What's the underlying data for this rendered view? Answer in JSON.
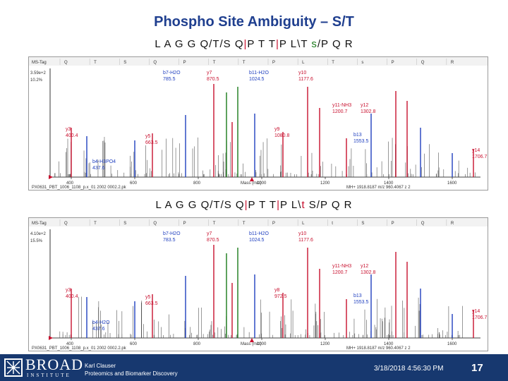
{
  "slide": {
    "title": "Phospho Site Ambiguity – S/T",
    "page_number": "17",
    "date": "3/18/2018 4:56:30 PM",
    "author_line1": "Karl Clauser",
    "author_line2": "Proteomics and Biomarker Discovery"
  },
  "logo": {
    "main": "BROAD",
    "sub": "INSTITUTE"
  },
  "sequence_top": {
    "prefix": "L A G G Q/T/S Q",
    "mid1": "P T T",
    "mid2": "P L\\T ",
    "highlight": "s",
    "suffix": "/P Q R"
  },
  "sequence_bottom": {
    "prefix": "L A G G Q/T/S Q",
    "mid1": "P T T",
    "mid2": "P L\\",
    "highlight": "t",
    "suffix": " S/P Q R"
  },
  "colors": {
    "title": "#1f3f8f",
    "footer": "#17386f",
    "y_ion": "#c8102e",
    "b_ion": "#1f3fbf",
    "green": "#1a7a1a"
  },
  "spectra": [
    {
      "header_left": "MS-Tag",
      "residues": [
        "Q",
        "T",
        "S",
        "Q",
        "P",
        "T",
        "T",
        "P",
        "L",
        "T",
        "s",
        "P",
        "Q",
        "R"
      ],
      "intensity_top": "3.59e+2",
      "intensity_scale": "10.2%",
      "x_axis_label": "Mass (m/z)",
      "x_ticks": [
        "400",
        "600",
        "800",
        "1000",
        "1200",
        "1400",
        "1600"
      ],
      "footer_left": "PX0631_PBT_1006_1108_p.x_01 2002 0002.2.pk",
      "footer_right": "MH+ 1918.8187 m/z 960.4067 z 2",
      "annotations": [
        {
          "text": "b7-H2O",
          "sub": "785.5",
          "color": "#1f3fbf"
        },
        {
          "text": "y7",
          "sub": "870.5",
          "color": "#c8102e"
        },
        {
          "text": "b11-H2O",
          "sub": "1024.5",
          "color": "#1f3fbf"
        },
        {
          "text": "y10",
          "sub": "1177.6",
          "color": "#c8102e"
        },
        {
          "text": "y11-NH3",
          "sub": "1200.7",
          "color": "#c8102e"
        },
        {
          "text": "y12",
          "sub": "1302.8",
          "color": "#c8102e"
        },
        {
          "text": "y5",
          "sub": "663.5",
          "color": "#c8102e"
        },
        {
          "text": "y3",
          "sub": "400.4",
          "color": "#c8102e"
        },
        {
          "text": "b4-H3PO4",
          "sub": "437.6",
          "color": "#1f3fbf"
        },
        {
          "text": "y9",
          "sub": "1080.8",
          "color": "#c8102e"
        },
        {
          "text": "b13",
          "sub": "1553.5",
          "color": "#1f3fbf"
        },
        {
          "text": "y14",
          "sub": "1706.7",
          "color": "#c8102e"
        }
      ]
    },
    {
      "header_left": "MS-Tag",
      "residues": [
        "Q",
        "T",
        "S",
        "Q",
        "P",
        "T",
        "T",
        "P",
        "L",
        "t",
        "S",
        "P",
        "Q",
        "R"
      ],
      "intensity_top": "4.10e+2",
      "intensity_scale": "15.5%",
      "x_axis_label": "Mass (m/z)",
      "x_ticks": [
        "400",
        "600",
        "800",
        "1000",
        "1200",
        "1400",
        "1600"
      ],
      "footer_left": "PX0631_PBT_1006_1108_p.x_01 2002 0002.2.pk",
      "footer_right": "MH+ 1918.8187 m/z 960.4067 z 2",
      "annotations": [
        {
          "text": "b7-H2O",
          "sub": "783.5",
          "color": "#1f3fbf"
        },
        {
          "text": "y7",
          "sub": "870.5",
          "color": "#c8102e"
        },
        {
          "text": "b11-H2O",
          "sub": "1024.5",
          "color": "#1f3fbf"
        },
        {
          "text": "y10",
          "sub": "1177.6",
          "color": "#c8102e"
        },
        {
          "text": "y11-NH3",
          "sub": "1200.7",
          "color": "#c8102e"
        },
        {
          "text": "y12",
          "sub": "1302.8",
          "color": "#c8102e"
        },
        {
          "text": "y5",
          "sub": "663.5",
          "color": "#c8102e"
        },
        {
          "text": "y3",
          "sub": "400.4",
          "color": "#c8102e"
        },
        {
          "text": "b4-H2O",
          "sub": "437.6",
          "color": "#1f3fbf"
        },
        {
          "text": "y8",
          "sub": "972.5",
          "color": "#c8102e"
        },
        {
          "text": "b13",
          "sub": "1553.5",
          "color": "#1f3fbf"
        },
        {
          "text": "y14",
          "sub": "1706.7",
          "color": "#c8102e"
        }
      ]
    }
  ]
}
